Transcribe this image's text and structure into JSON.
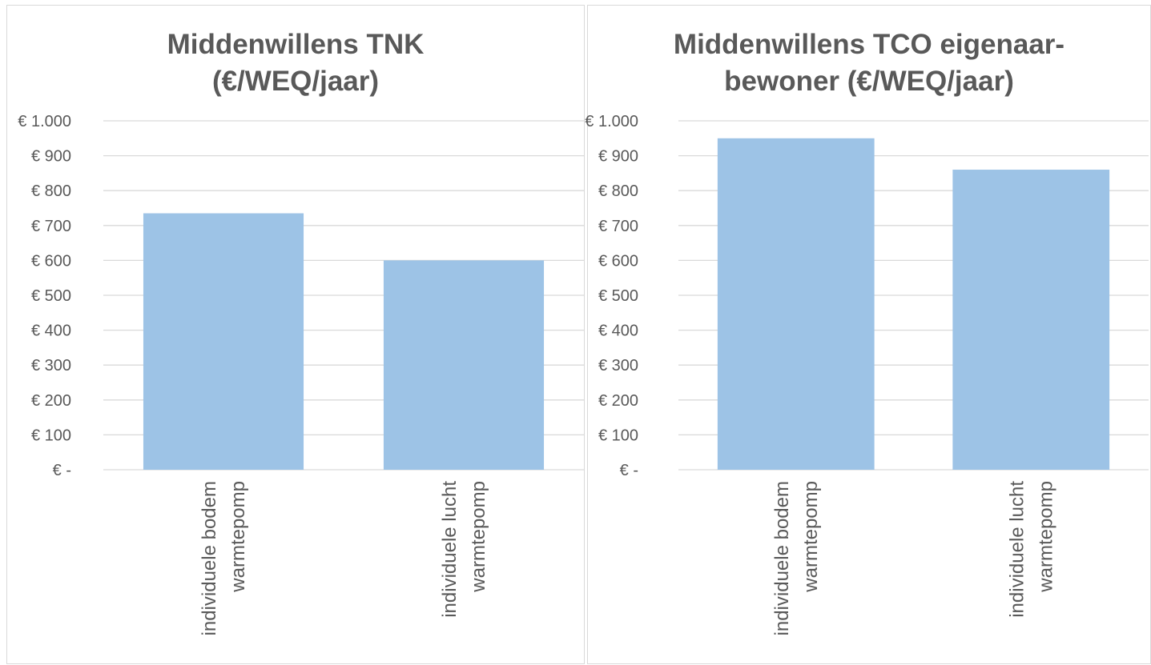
{
  "chart_data": [
    {
      "type": "bar",
      "title_lines": [
        "Middenwillens TNK",
        "(€/WEQ/jaar)"
      ],
      "categories": [
        [
          "individuele bodem",
          "warmtepomp"
        ],
        [
          "individuele lucht",
          "warmtepomp"
        ]
      ],
      "values": [
        735,
        600
      ],
      "ylim": [
        0,
        1000
      ],
      "ytick_labels": [
        "€ -",
        "€ 100",
        "€ 200",
        "€ 300",
        "€ 400",
        "€ 500",
        "€ 600",
        "€ 700",
        "€ 800",
        "€ 900",
        "€ 1.000"
      ],
      "grid": true,
      "legend": "none",
      "color": "#9dc3e6"
    },
    {
      "type": "bar",
      "title_lines": [
        "Middenwillens TCO eigenaar-",
        "bewoner (€/WEQ/jaar)"
      ],
      "categories": [
        [
          "individuele bodem",
          "warmtepomp"
        ],
        [
          "individuele lucht",
          "warmtepomp"
        ]
      ],
      "values": [
        950,
        860
      ],
      "ylim": [
        0,
        1000
      ],
      "ytick_labels": [
        "€ -",
        "€ 100",
        "€ 200",
        "€ 300",
        "€ 400",
        "€ 500",
        "€ 600",
        "€ 700",
        "€ 800",
        "€ 900",
        "€ 1.000"
      ],
      "grid": true,
      "legend": "none",
      "color": "#9dc3e6"
    }
  ]
}
